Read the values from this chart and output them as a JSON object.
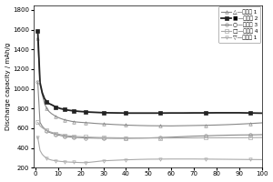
{
  "ylabel": "Discharge capacity / mAh/g",
  "xlim": [
    -1,
    100
  ],
  "ylim": [
    200,
    1850
  ],
  "yticks": [
    200,
    400,
    600,
    800,
    1000,
    1200,
    1400,
    1600,
    1800
  ],
  "xticks": [
    0,
    10,
    20,
    30,
    40,
    50,
    60,
    70,
    80,
    90,
    100
  ],
  "series": {
    "s1_x": [
      1,
      2,
      3,
      4,
      5,
      6,
      7,
      8,
      9,
      10,
      11,
      12,
      13,
      14,
      15,
      16,
      17,
      18,
      19,
      20,
      22,
      24,
      26,
      28,
      30,
      32,
      35,
      38,
      40,
      43,
      46,
      50,
      55,
      60,
      65,
      70,
      75,
      80,
      85,
      90,
      95,
      100
    ],
    "s1_y": [
      1510,
      1050,
      940,
      850,
      800,
      770,
      750,
      735,
      720,
      710,
      700,
      692,
      685,
      680,
      675,
      670,
      667,
      664,
      662,
      660,
      657,
      654,
      650,
      647,
      644,
      642,
      638,
      635,
      632,
      630,
      628,
      626,
      625,
      624,
      626,
      628,
      630,
      633,
      637,
      642,
      648,
      655
    ],
    "s2_x": [
      1,
      2,
      3,
      4,
      5,
      6,
      7,
      8,
      9,
      10,
      11,
      12,
      13,
      14,
      15,
      16,
      17,
      18,
      19,
      20,
      22,
      24,
      26,
      28,
      30,
      32,
      35,
      38,
      40,
      43,
      46,
      50,
      55,
      60,
      65,
      70,
      75,
      80,
      85,
      90,
      95,
      100
    ],
    "s2_y": [
      1590,
      1065,
      960,
      900,
      870,
      850,
      840,
      828,
      815,
      808,
      800,
      795,
      790,
      785,
      782,
      779,
      776,
      774,
      772,
      770,
      767,
      764,
      762,
      760,
      758,
      757,
      756,
      755,
      754,
      754,
      754,
      754,
      754,
      755,
      755,
      756,
      756,
      757,
      757,
      757,
      755,
      753
    ],
    "s3_x": [
      1,
      2,
      3,
      4,
      5,
      6,
      7,
      8,
      9,
      10,
      11,
      12,
      13,
      14,
      15,
      16,
      17,
      18,
      19,
      20,
      22,
      24,
      26,
      28,
      30,
      32,
      35,
      38,
      40,
      43,
      46,
      50,
      55,
      60,
      65,
      70,
      75,
      80,
      85,
      90,
      95,
      100
    ],
    "s3_y": [
      1070,
      660,
      620,
      595,
      575,
      560,
      552,
      545,
      538,
      532,
      527,
      522,
      518,
      514,
      512,
      510,
      508,
      506,
      505,
      504,
      502,
      501,
      500,
      499,
      499,
      499,
      498,
      498,
      498,
      499,
      500,
      502,
      506,
      510,
      515,
      520,
      523,
      527,
      530,
      532,
      533,
      535
    ],
    "s4_x": [
      1,
      2,
      3,
      4,
      5,
      6,
      7,
      8,
      9,
      10,
      11,
      12,
      13,
      14,
      15,
      16,
      17,
      18,
      19,
      20,
      22,
      24,
      26,
      28,
      30,
      32,
      35,
      38,
      40,
      43,
      46,
      50,
      55,
      60,
      65,
      70,
      75,
      80,
      85,
      90,
      95,
      100
    ],
    "s4_y": [
      660,
      625,
      605,
      590,
      578,
      568,
      560,
      553,
      547,
      542,
      537,
      533,
      529,
      526,
      523,
      521,
      519,
      517,
      516,
      515,
      512,
      510,
      508,
      507,
      506,
      505,
      504,
      503,
      502,
      502,
      501,
      501,
      501,
      501,
      502,
      502,
      503,
      503,
      504,
      504,
      505,
      506
    ],
    "s5_x": [
      1,
      2,
      3,
      4,
      5,
      6,
      7,
      8,
      9,
      10,
      11,
      12,
      13,
      14,
      15,
      16,
      17,
      18,
      19,
      20,
      22,
      24,
      26,
      28,
      30,
      32,
      35,
      38,
      40,
      43,
      46,
      50,
      55,
      60,
      65,
      70,
      75,
      80,
      85,
      90,
      95,
      100
    ],
    "s5_y": [
      510,
      375,
      335,
      312,
      296,
      285,
      278,
      273,
      270,
      267,
      264,
      262,
      260,
      258,
      257,
      256,
      255,
      254,
      253,
      252,
      251,
      255,
      260,
      265,
      270,
      272,
      275,
      278,
      280,
      282,
      284,
      286,
      287,
      288,
      288,
      288,
      287,
      286,
      285,
      284,
      283,
      282
    ]
  },
  "colors": {
    "s1": "#888888",
    "s2": "#222222",
    "s3": "#888888",
    "s4": "#aaaaaa",
    "s5": "#aaaaaa"
  },
  "linewidths": {
    "s1": 0.8,
    "s2": 1.3,
    "s3": 0.8,
    "s4": 0.8,
    "s5": 0.8
  },
  "legend_labels": [
    "△—实施列 1",
    "■—实施列 2",
    "○—实施列 3",
    "□—实施列 4",
    "▽—对比列 1"
  ]
}
